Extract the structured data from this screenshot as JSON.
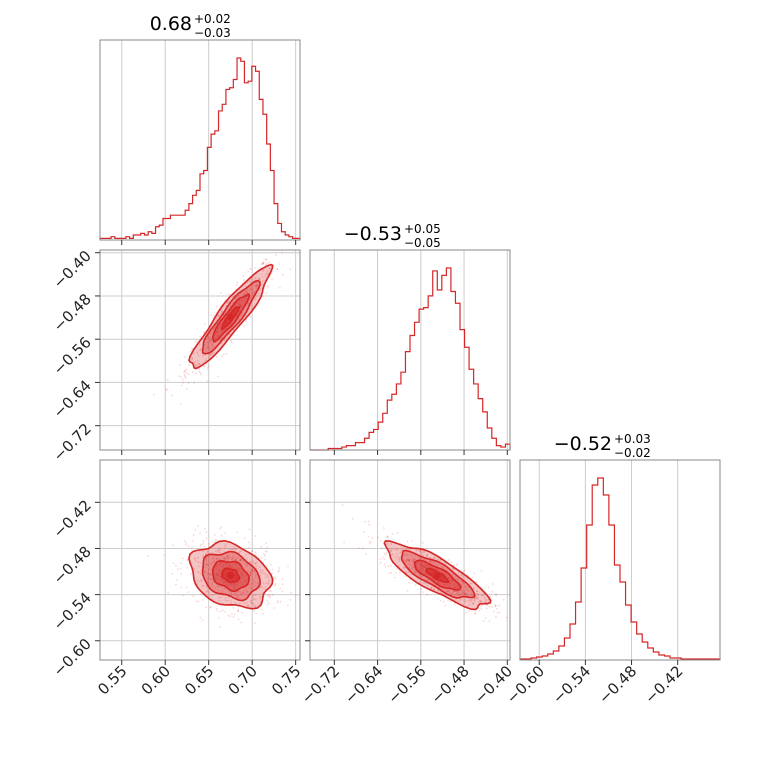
{
  "chart_data": {
    "type": "corner",
    "color": "#d62728",
    "grid": true,
    "parameters": [
      {
        "range": [
          0.525,
          0.755
        ],
        "ticks": [
          0.55,
          0.6,
          0.65,
          0.7,
          0.75
        ],
        "tick_labels": [
          "0.55",
          "0.60",
          "0.65",
          "0.70",
          "0.75"
        ]
      },
      {
        "range": [
          -0.765,
          -0.395
        ],
        "ticks": [
          -0.72,
          -0.64,
          -0.56,
          -0.48,
          -0.4
        ],
        "tick_labels": [
          "−0.72",
          "−0.64",
          "−0.56",
          "−0.48",
          "−0.40"
        ]
      },
      {
        "range": [
          -0.625,
          -0.365
        ],
        "ticks": [
          -0.6,
          -0.54,
          -0.48,
          -0.42
        ],
        "tick_labels": [
          "−0.60",
          "−0.54",
          "−0.48",
          "−0.42"
        ]
      }
    ],
    "titles": [
      {
        "value": "0.68",
        "upper": "+0.02",
        "lower": "−0.03"
      },
      {
        "value": "−0.53",
        "upper": "+0.05",
        "lower": "−0.05"
      },
      {
        "value": "−0.52",
        "upper": "+0.03",
        "lower": "−0.02"
      }
    ],
    "histograms": [
      {
        "bins": [
          0.525,
          0.755
        ],
        "counts": [
          1,
          1,
          1,
          2,
          1,
          1,
          1,
          2,
          1,
          3,
          3,
          4,
          3,
          5,
          4,
          8,
          9,
          13,
          13,
          15,
          15,
          15,
          15,
          18,
          22,
          27,
          30,
          40,
          42,
          56,
          64,
          66,
          78,
          82,
          91,
          92,
          97,
          110,
          108,
          95,
          96,
          105,
          102,
          85,
          76,
          58,
          42,
          22,
          10,
          5,
          3,
          2,
          1,
          1
        ]
      },
      {
        "bins": [
          -0.765,
          -0.395
        ],
        "counts": [
          0,
          0,
          0,
          0,
          1,
          1,
          1,
          2,
          3,
          3,
          5,
          5,
          8,
          12,
          14,
          19,
          25,
          34,
          38,
          45,
          53,
          67,
          78,
          87,
          96,
          97,
          105,
          122,
          109,
          119,
          124,
          108,
          100,
          82,
          70,
          55,
          45,
          35,
          26,
          15,
          8,
          3,
          2,
          4
        ]
      },
      {
        "bins": [
          -0.625,
          -0.365
        ],
        "counts": [
          1,
          1,
          2,
          3,
          4,
          6,
          9,
          14,
          22,
          36,
          58,
          92,
          135,
          175,
          182,
          165,
          135,
          95,
          78,
          55,
          38,
          26,
          18,
          12,
          8,
          5,
          4,
          2,
          2,
          1,
          1,
          1,
          1,
          1,
          1,
          1
        ]
      }
    ],
    "pairs": [
      {
        "x_param": 0,
        "y_param": 1,
        "center": [
          0.675,
          -0.52
        ],
        "sd": [
          0.022,
          0.045
        ],
        "corr": 0.92
      },
      {
        "x_param": 0,
        "y_param": 2,
        "center": [
          0.675,
          -0.515
        ],
        "sd": [
          0.022,
          0.02
        ],
        "corr": -0.25
      },
      {
        "x_param": 1,
        "y_param": 2,
        "center": [
          -0.53,
          -0.515
        ],
        "sd": [
          0.045,
          0.02
        ],
        "corr": -0.82
      }
    ]
  }
}
